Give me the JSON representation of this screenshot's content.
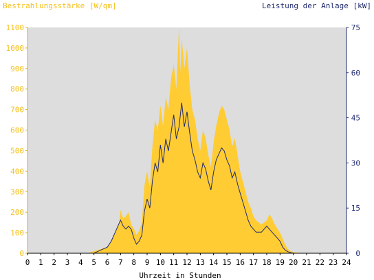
{
  "chart_data": {
    "type": "area",
    "left_axis_title": "Bestrahlungsstärke [W/qm]",
    "right_axis_title": "Leistung der Anlage [kW]",
    "xlabel": "Uhrzeit in Stunden",
    "x_ticks": [
      "0",
      "1",
      "2",
      "3",
      "4",
      "5",
      "6",
      "7",
      "8",
      "9",
      "10",
      "11",
      "12",
      "13",
      "14",
      "15",
      "16",
      "17",
      "18",
      "19",
      "20",
      "21",
      "22",
      "23",
      "24"
    ],
    "left_ticks": [
      "0",
      "100",
      "200",
      "300",
      "400",
      "500",
      "600",
      "700",
      "800",
      "900",
      "1000",
      "1100"
    ],
    "right_ticks": [
      "0",
      "15",
      "30",
      "45",
      "60",
      "75"
    ],
    "xlim": [
      0,
      24
    ],
    "ylim_left": [
      0,
      1100
    ],
    "ylim_right": [
      0,
      75
    ],
    "grid": false,
    "colors": {
      "plot_bg": "#dddddd",
      "irradiance_fill": "#ffcc33",
      "power_line": "#1f2a6e",
      "left_axis_text": "#f5c018",
      "right_axis_text": "#1f2a6e"
    },
    "series": [
      {
        "axis": "left",
        "style": "area",
        "x": [
          0,
          4.5,
          5,
          5.5,
          6,
          6.3,
          6.6,
          6.9,
          7.0,
          7.2,
          7.4,
          7.6,
          7.8,
          8.0,
          8.2,
          8.4,
          8.6,
          8.8,
          9.0,
          9.2,
          9.4,
          9.6,
          9.8,
          10.0,
          10.2,
          10.4,
          10.6,
          10.8,
          11.0,
          11.2,
          11.4,
          11.5,
          11.6,
          11.8,
          12.0,
          12.2,
          12.4,
          12.6,
          12.8,
          13.0,
          13.2,
          13.4,
          13.6,
          13.8,
          14.0,
          14.2,
          14.4,
          14.6,
          14.8,
          15.0,
          15.2,
          15.4,
          15.6,
          15.8,
          16.0,
          16.2,
          16.4,
          16.6,
          16.8,
          17.0,
          17.2,
          17.4,
          17.6,
          17.8,
          18.0,
          18.2,
          18.4,
          18.6,
          18.8,
          19.0,
          19.2,
          19.4,
          19.6,
          19.8,
          20.0,
          20.3,
          20.6,
          21,
          24
        ],
        "values": [
          0,
          0,
          10,
          20,
          30,
          60,
          100,
          150,
          210,
          170,
          180,
          200,
          140,
          120,
          90,
          110,
          150,
          330,
          400,
          320,
          520,
          650,
          600,
          720,
          620,
          760,
          700,
          850,
          920,
          800,
          1100,
          880,
          1050,
          900,
          1000,
          820,
          700,
          650,
          560,
          500,
          600,
          560,
          480,
          420,
          540,
          620,
          680,
          720,
          700,
          650,
          600,
          520,
          560,
          480,
          400,
          350,
          300,
          250,
          220,
          180,
          160,
          150,
          140,
          150,
          160,
          190,
          170,
          140,
          120,
          100,
          70,
          40,
          20,
          10,
          5,
          3,
          1,
          0,
          0
        ]
      },
      {
        "axis": "right",
        "style": "line",
        "x": [
          0,
          5.0,
          5.5,
          6.0,
          6.3,
          6.6,
          6.9,
          7.0,
          7.2,
          7.4,
          7.6,
          7.8,
          8.0,
          8.2,
          8.4,
          8.6,
          8.8,
          9.0,
          9.2,
          9.4,
          9.6,
          9.8,
          10.0,
          10.2,
          10.4,
          10.6,
          10.8,
          11.0,
          11.2,
          11.4,
          11.6,
          11.8,
          12.0,
          12.2,
          12.4,
          12.6,
          12.8,
          13.0,
          13.2,
          13.4,
          13.6,
          13.8,
          14.0,
          14.2,
          14.4,
          14.6,
          14.8,
          15.0,
          15.2,
          15.4,
          15.6,
          15.8,
          16.0,
          16.2,
          16.4,
          16.6,
          16.8,
          17.0,
          17.2,
          17.4,
          17.6,
          17.8,
          18.0,
          18.2,
          18.4,
          18.6,
          18.8,
          19.0,
          19.2,
          19.4,
          19.6,
          19.8,
          20.0,
          20.5,
          24
        ],
        "values": [
          0,
          0,
          1,
          2,
          4,
          7,
          10,
          11,
          9,
          8,
          9,
          8,
          5,
          3,
          4,
          6,
          14,
          18,
          15,
          24,
          30,
          27,
          36,
          30,
          38,
          34,
          40,
          46,
          38,
          42,
          50,
          42,
          47,
          40,
          34,
          31,
          27,
          25,
          30,
          28,
          24,
          21,
          27,
          31,
          33,
          35,
          34,
          31,
          29,
          25,
          27,
          23,
          20,
          17,
          14,
          11,
          9,
          8,
          7,
          7,
          7,
          8,
          9,
          8,
          7,
          6,
          5,
          4,
          2,
          1,
          0.5,
          0.2,
          0,
          0,
          0
        ]
      }
    ]
  }
}
